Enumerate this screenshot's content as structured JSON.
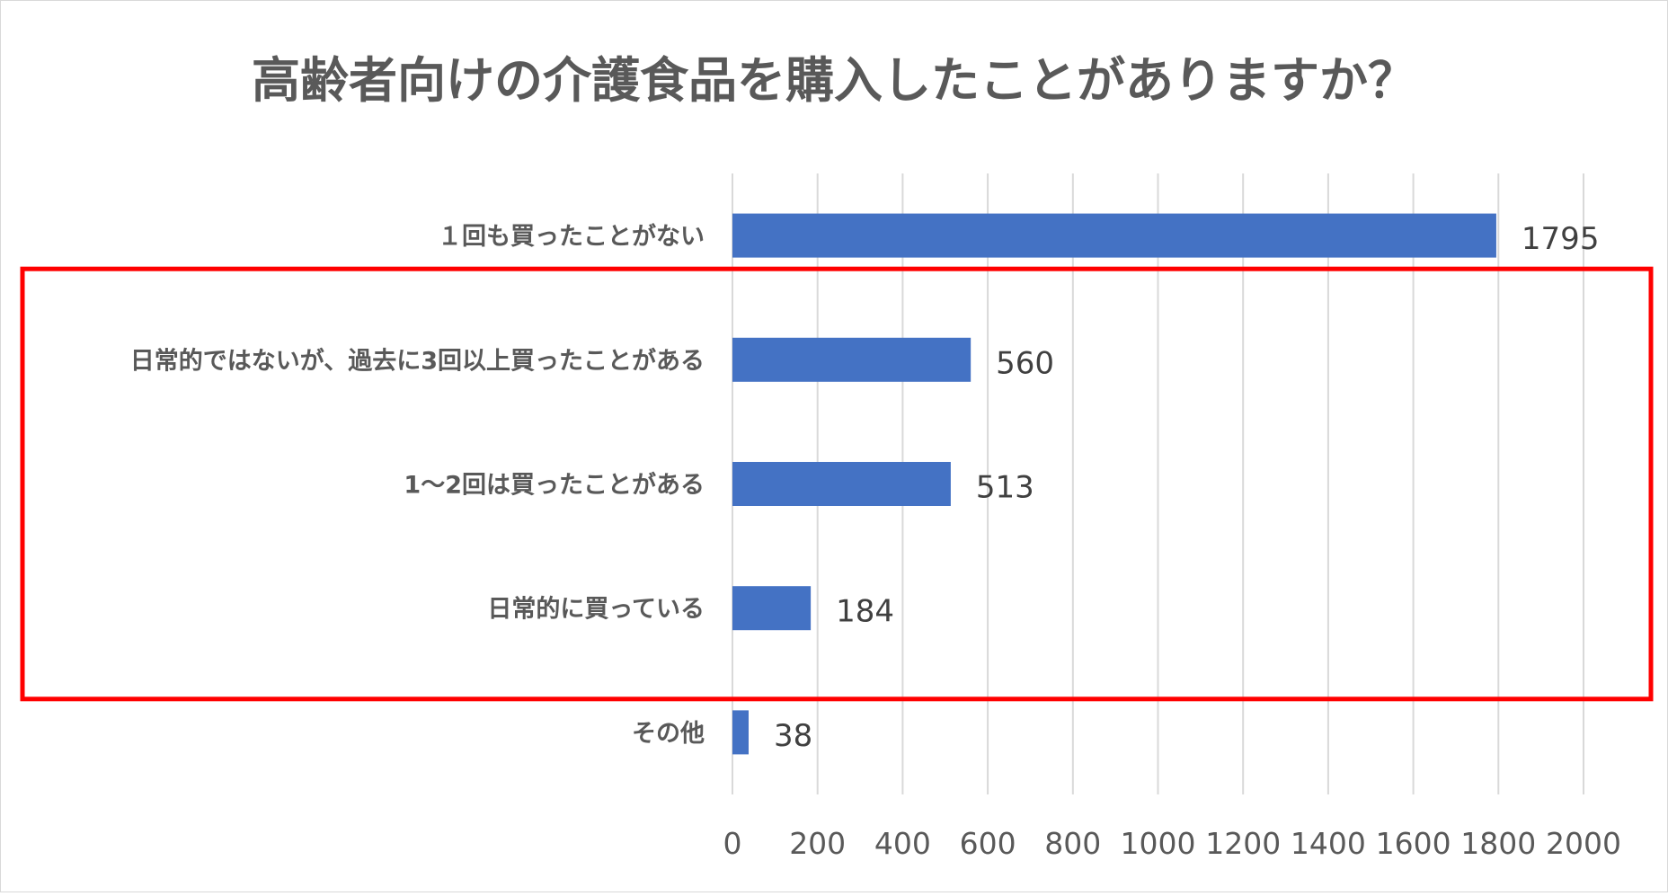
{
  "chart_data": {
    "type": "bar",
    "orientation": "horizontal",
    "title": "高齢者向けの介護食品を購入したことがありますか？",
    "categories": [
      "１回も買ったことがない",
      "日常的ではないが、過去に3回以上買ったことがある",
      "1〜2回は買ったことがある",
      "日常的に買っている",
      "その他"
    ],
    "values": [
      1795,
      560,
      513,
      184,
      38
    ],
    "xlim": [
      0,
      2000
    ],
    "xticks": [
      0,
      200,
      400,
      600,
      800,
      1000,
      1200,
      1400,
      1600,
      1800,
      2000
    ],
    "grid": "vertical",
    "bar_color": "#4472c4",
    "highlight": {
      "categories": [
        "日常的ではないが、過去に3回以上買ったことがある",
        "1〜2回は買ったことがある",
        "日常的に買っている"
      ],
      "color": "#ff0000"
    }
  }
}
